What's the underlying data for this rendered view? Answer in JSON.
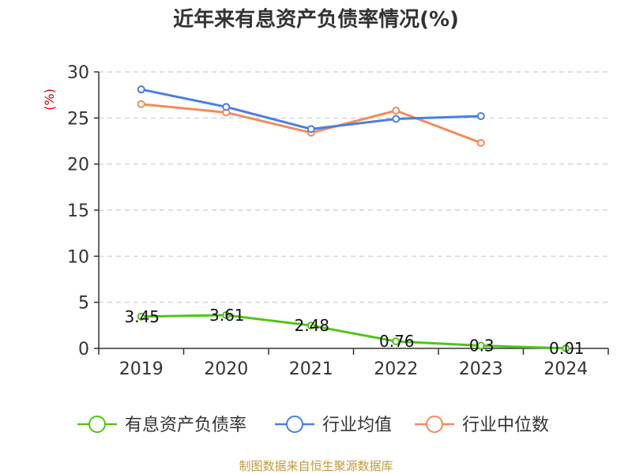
{
  "chart_data": {
    "type": "line",
    "title": "近年来有息资产负债率情况(%)",
    "ylabel": "(%)",
    "categories": [
      "2019",
      "2020",
      "2021",
      "2022",
      "2023",
      "2024"
    ],
    "ylim": [
      0,
      30
    ],
    "yticks": [
      "0",
      "5",
      "10",
      "15",
      "20",
      "25",
      "30"
    ],
    "grid": true,
    "legend_position": "bottom",
    "series": [
      {
        "name": "有息资产负债率",
        "color": "#52c41a",
        "values": [
          3.45,
          3.61,
          2.48,
          0.76,
          0.3,
          0.01
        ],
        "labels": [
          "3.45",
          "3.61",
          "2.48",
          "0.76",
          "0.3",
          "0.01"
        ]
      },
      {
        "name": "行业均值",
        "color": "#4a7fe0",
        "values": [
          28.1,
          26.2,
          23.8,
          24.9,
          25.2,
          null
        ]
      },
      {
        "name": "行业中位数",
        "color": "#f28c5a",
        "values": [
          26.5,
          25.6,
          23.4,
          25.8,
          22.3,
          null
        ]
      }
    ]
  },
  "source_text": "制图数据来自恒生聚源数据库"
}
